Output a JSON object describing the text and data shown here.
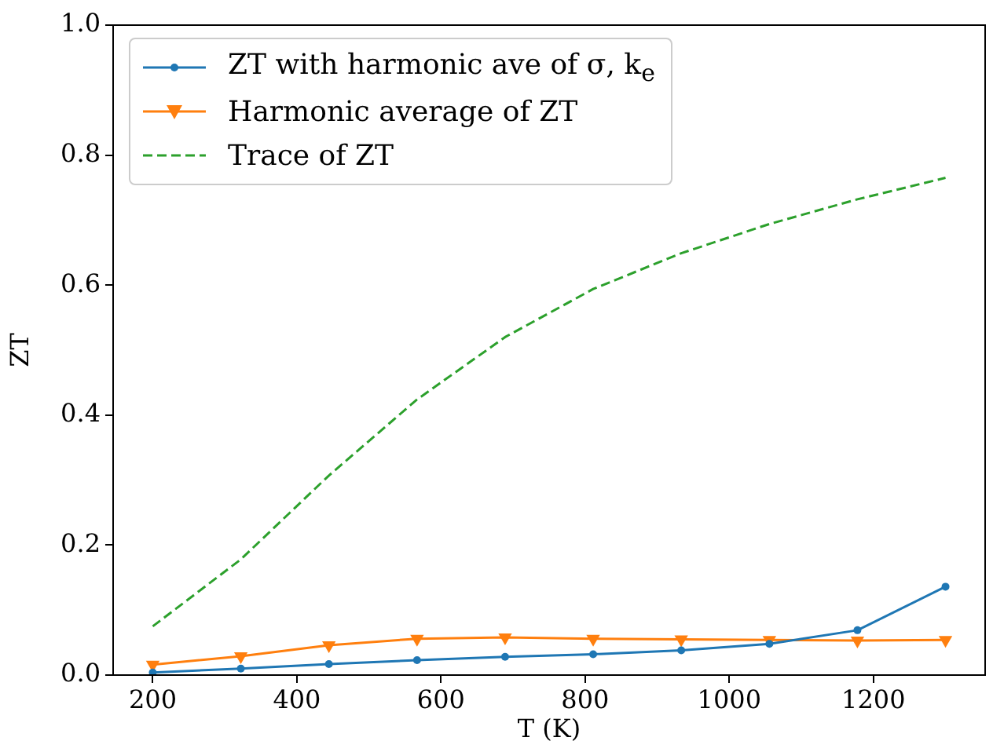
{
  "chart_data": {
    "type": "line",
    "xlabel": "T (K)",
    "ylabel": "ZT",
    "x": [
      200,
      322.2,
      444.4,
      566.7,
      688.9,
      811.1,
      933.3,
      1055.6,
      1177.8,
      1300
    ],
    "series": [
      {
        "name": "ZT with harmonic ave of σ, k$_{e}$",
        "color": "#1f77b4",
        "marker": "circle",
        "line_style": "solid",
        "values": [
          0.004,
          0.01,
          0.017,
          0.023,
          0.028,
          0.032,
          0.038,
          0.048,
          0.069,
          0.136
        ]
      },
      {
        "name": "Harmonic average of ZT",
        "color": "#ff7f0e",
        "marker": "triangle",
        "line_style": "solid",
        "values": [
          0.016,
          0.029,
          0.046,
          0.056,
          0.058,
          0.056,
          0.055,
          0.054,
          0.053,
          0.054
        ]
      },
      {
        "name": "Trace of ZT",
        "color": "#2ca02c",
        "marker": "none",
        "line_style": "dashed",
        "values": [
          0.075,
          0.178,
          0.307,
          0.424,
          0.52,
          0.594,
          0.649,
          0.694,
          0.732,
          0.765
        ]
      }
    ],
    "xlim": [
      145,
      1355
    ],
    "xticks": [
      200,
      400,
      600,
      800,
      1000,
      1200
    ],
    "ylim": [
      0,
      1
    ],
    "yticks": [
      {
        "value": 0,
        "label": "0.0"
      },
      {
        "value": 0.2,
        "label": "0.2"
      },
      {
        "value": 0.4,
        "label": "0.4"
      },
      {
        "value": 0.6,
        "label": "0.6"
      },
      {
        "value": 0.8,
        "label": "0.8"
      },
      {
        "value": 1,
        "label": "1.0"
      }
    ],
    "grid": false,
    "legend": "top left"
  }
}
